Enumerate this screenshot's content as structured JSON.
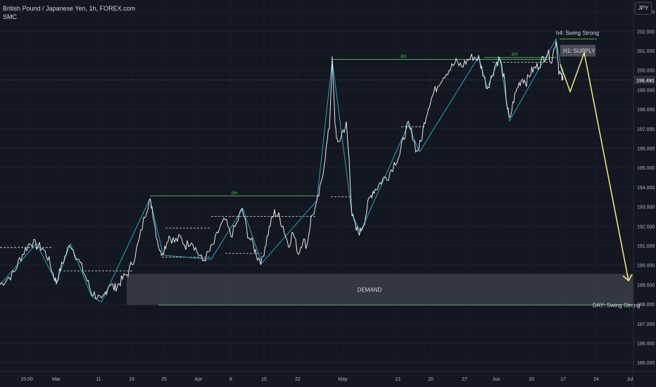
{
  "header": {
    "title": "British Pound / Japanese Yen, 1h, FOREX.com",
    "indicator": "SMC"
  },
  "currency_button": "JPY",
  "colors": {
    "background": "#131722",
    "price_line": "#e8e8e8",
    "structure_line": "#26a6b5",
    "level_line": "#4caf50",
    "dashed": "#e0e0e0",
    "zone_fill": "#3a3d48",
    "projection": "#f5f07a",
    "axis_text": "#b2b5be"
  },
  "chart_data": {
    "type": "line",
    "title": "",
    "xlabel": "",
    "ylabel": "",
    "ylim": [
      184.9,
      203.6
    ],
    "y_ticks": [
      185.0,
      186.0,
      187.0,
      188.0,
      189.0,
      190.0,
      191.0,
      192.0,
      193.0,
      194.0,
      195.0,
      196.0,
      197.0,
      198.0,
      199.0,
      200.0,
      201.0,
      202.0,
      203.0
    ],
    "x_tick_labels": [
      "15:00",
      "Mar",
      "11",
      "18",
      "25",
      "Apr",
      "8",
      "15",
      "22",
      "May",
      "13",
      "20",
      "27",
      "Jun",
      "10",
      "17",
      "24",
      "Jul"
    ],
    "last_price": "199.490",
    "series": [
      {
        "values": [
          [
            0,
            189.0
          ],
          [
            10,
            189.3
          ],
          [
            20,
            189.6
          ],
          [
            28,
            190.3
          ],
          [
            36,
            190.8
          ],
          [
            44,
            191.2
          ],
          [
            52,
            191.0
          ],
          [
            60,
            190.9
          ],
          [
            68,
            190.4
          ],
          [
            75,
            189.6
          ],
          [
            80,
            189.1
          ],
          [
            86,
            189.8
          ],
          [
            92,
            190.4
          ],
          [
            100,
            191.1
          ],
          [
            108,
            190.5
          ],
          [
            116,
            189.9
          ],
          [
            124,
            189.2
          ],
          [
            130,
            188.6
          ],
          [
            138,
            188.4
          ],
          [
            144,
            188.1
          ],
          [
            150,
            188.6
          ],
          [
            156,
            189.1
          ],
          [
            162,
            188.8
          ],
          [
            168,
            189.0
          ],
          [
            174,
            189.3
          ],
          [
            182,
            189.6
          ],
          [
            190,
            190.3
          ],
          [
            198,
            191.3
          ],
          [
            206,
            192.6
          ],
          [
            212,
            193.3
          ],
          [
            216,
            193.0
          ],
          [
            222,
            191.6
          ],
          [
            228,
            190.6
          ],
          [
            234,
            190.9
          ],
          [
            240,
            191.5
          ],
          [
            248,
            191.2
          ],
          [
            256,
            191.4
          ],
          [
            264,
            191.0
          ],
          [
            272,
            191.3
          ],
          [
            280,
            190.7
          ],
          [
            288,
            190.2
          ],
          [
            296,
            190.6
          ],
          [
            304,
            191.1
          ],
          [
            312,
            191.9
          ],
          [
            320,
            192.3
          ],
          [
            328,
            191.5
          ],
          [
            336,
            192.1
          ],
          [
            344,
            192.9
          ],
          [
            352,
            191.6
          ],
          [
            360,
            191.0
          ],
          [
            366,
            190.4
          ],
          [
            372,
            190.2
          ],
          [
            378,
            191.2
          ],
          [
            384,
            192.1
          ],
          [
            390,
            192.7
          ],
          [
            396,
            192.5
          ],
          [
            402,
            192.0
          ],
          [
            410,
            191.0
          ],
          [
            416,
            191.7
          ],
          [
            424,
            190.6
          ],
          [
            430,
            191.3
          ],
          [
            436,
            191.0
          ],
          [
            442,
            192.4
          ],
          [
            450,
            193.1
          ],
          [
            456,
            194.1
          ],
          [
            462,
            195.6
          ],
          [
            468,
            197.1
          ],
          [
            472,
            200.5
          ],
          [
            476,
            197.3
          ],
          [
            480,
            196.1
          ],
          [
            486,
            196.8
          ],
          [
            492,
            197.2
          ],
          [
            496,
            195.4
          ],
          [
            500,
            192.6
          ],
          [
            506,
            191.8
          ],
          [
            512,
            191.7
          ],
          [
            518,
            192.3
          ],
          [
            524,
            193.3
          ],
          [
            530,
            193.8
          ],
          [
            536,
            194.0
          ],
          [
            544,
            194.4
          ],
          [
            552,
            194.6
          ],
          [
            560,
            195.2
          ],
          [
            568,
            195.7
          ],
          [
            574,
            196.6
          ],
          [
            580,
            197.2
          ],
          [
            586,
            196.7
          ],
          [
            592,
            195.8
          ],
          [
            598,
            196.3
          ],
          [
            604,
            197.5
          ],
          [
            610,
            198.3
          ],
          [
            616,
            198.8
          ],
          [
            624,
            199.4
          ],
          [
            632,
            199.8
          ],
          [
            640,
            200.1
          ],
          [
            648,
            200.4
          ],
          [
            656,
            200.2
          ],
          [
            664,
            200.5
          ],
          [
            672,
            200.7
          ],
          [
            680,
            200.6
          ],
          [
            686,
            199.9
          ],
          [
            692,
            199.1
          ],
          [
            698,
            199.6
          ],
          [
            704,
            200.3
          ],
          [
            710,
            200.6
          ],
          [
            716,
            199.6
          ],
          [
            720,
            198.3
          ],
          [
            724,
            197.4
          ],
          [
            730,
            198.5
          ],
          [
            736,
            199.2
          ],
          [
            742,
            199.6
          ],
          [
            748,
            199.4
          ],
          [
            754,
            199.9
          ],
          [
            760,
            200.1
          ],
          [
            766,
            200.3
          ],
          [
            772,
            200.6
          ],
          [
            778,
            200.9
          ],
          [
            784,
            200.5
          ],
          [
            790,
            201.6
          ],
          [
            794,
            200.0
          ],
          [
            798,
            199.6
          ],
          [
            800,
            199.49
          ]
        ]
      }
    ],
    "annotations": {
      "levels": [
        "4H",
        "4H",
        "4H"
      ],
      "zones": [
        "H1: SUPPLY",
        "DEMAND"
      ],
      "swing_labels": [
        "h4: Swing Strong",
        "DAY: Swing Strong"
      ]
    }
  }
}
